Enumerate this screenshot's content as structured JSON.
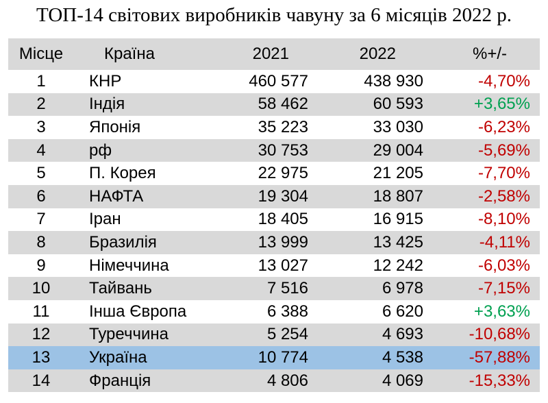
{
  "title": "ТОП-14 світових виробників чавуну за 6 місяців 2022 р.",
  "colors": {
    "negative": "#c00000",
    "positive": "#00a050",
    "highlight": "#9cc2e5",
    "shade": "#d9d9d9"
  },
  "chart_data": {
    "type": "table",
    "title": "ТОП-14 світових виробників чавуну за 6 місяців 2022 р.",
    "columns": [
      "Місце",
      "Країна",
      "2021",
      "2022",
      "%+/-"
    ],
    "rows": [
      [
        "1",
        "КНР",
        "460 577",
        "438 930",
        "-4,70%"
      ],
      [
        "2",
        "Індія",
        "58 462",
        "60 593",
        "+3,65%"
      ],
      [
        "3",
        "Японія",
        "35 223",
        "33 030",
        "-6,23%"
      ],
      [
        "4",
        "рф",
        "30 753",
        "29 004",
        "-5,69%"
      ],
      [
        "5",
        "П. Корея",
        "22 975",
        "21 205",
        "-7,70%"
      ],
      [
        "6",
        "НАФТА",
        "19 304",
        "18 807",
        "-2,58%"
      ],
      [
        "7",
        "Іран",
        "18 405",
        "16 915",
        "-8,10%"
      ],
      [
        "8",
        "Бразилія",
        "13 999",
        "13 425",
        "-4,11%"
      ],
      [
        "9",
        "Німеччина",
        "13 027",
        "12 242",
        "-6,03%"
      ],
      [
        "10",
        "Тайвань",
        "7 516",
        "6 978",
        "-7,15%"
      ],
      [
        "11",
        "Інша Європа",
        "6 388",
        "6 620",
        "+3,63%"
      ],
      [
        "12",
        "Туреччина",
        "5 254",
        "4 693",
        "-10,68%"
      ],
      [
        "13",
        "Україна",
        "10 774",
        "4 538",
        "-57,88%"
      ],
      [
        "14",
        "Франція",
        "4 806",
        "4 069",
        "-15,33%"
      ]
    ],
    "highlighted_row": 13
  }
}
